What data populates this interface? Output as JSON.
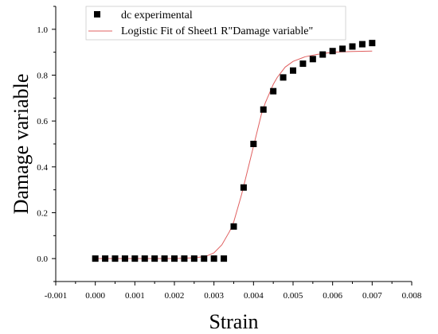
{
  "chart_data": {
    "type": "scatter",
    "xlabel": "Strain",
    "ylabel": "Damage variable",
    "xlim": [
      -0.001,
      0.008
    ],
    "ylim": [
      -0.1,
      1.1
    ],
    "x_ticks": [
      "-0.001",
      "0.000",
      "0.001",
      "0.002",
      "0.003",
      "0.004",
      "0.005",
      "0.006",
      "0.007",
      "0.008"
    ],
    "y_ticks": [
      "0.0",
      "0.2",
      "0.4",
      "0.6",
      "0.8",
      "1.0"
    ],
    "grid": false,
    "legend_position": "top",
    "series": [
      {
        "name": "dc experimental",
        "kind": "scatter",
        "marker": "square",
        "color": "#000000",
        "x": [
          0.0,
          0.00025,
          0.0005,
          0.00075,
          0.001,
          0.00125,
          0.0015,
          0.00175,
          0.002,
          0.00225,
          0.0025,
          0.00275,
          0.003,
          0.00325,
          0.0035,
          0.00375,
          0.004,
          0.00425,
          0.0045,
          0.00475,
          0.005,
          0.00525,
          0.0055,
          0.00575,
          0.006,
          0.00625,
          0.0065,
          0.00675,
          0.007
        ],
        "y": [
          0.0,
          0.0,
          0.0,
          0.0,
          0.0,
          0.0,
          0.0,
          0.0,
          0.0,
          0.0,
          0.0,
          0.0,
          0.0,
          0.0,
          0.14,
          0.31,
          0.5,
          0.65,
          0.73,
          0.79,
          0.82,
          0.85,
          0.87,
          0.89,
          0.905,
          0.915,
          0.925,
          0.935,
          0.94
        ]
      },
      {
        "name": "Logistic Fit of Sheet1 R\"Damage variable\"",
        "kind": "line",
        "color": "#e06060",
        "x": [
          0.0,
          0.0005,
          0.001,
          0.0015,
          0.002,
          0.0025,
          0.0028,
          0.003,
          0.0032,
          0.0034,
          0.0035,
          0.0036,
          0.0037,
          0.0038,
          0.0039,
          0.004,
          0.0041,
          0.0042,
          0.0043,
          0.0044,
          0.0045,
          0.0046,
          0.0048,
          0.005,
          0.0053,
          0.0056,
          0.006,
          0.0065,
          0.007
        ],
        "y": [
          0.0,
          0.0,
          0.0,
          0.0,
          0.0,
          0.003,
          0.01,
          0.025,
          0.06,
          0.12,
          0.16,
          0.22,
          0.28,
          0.35,
          0.42,
          0.49,
          0.56,
          0.63,
          0.68,
          0.72,
          0.76,
          0.79,
          0.835,
          0.86,
          0.88,
          0.89,
          0.9,
          0.903,
          0.905
        ]
      }
    ]
  }
}
